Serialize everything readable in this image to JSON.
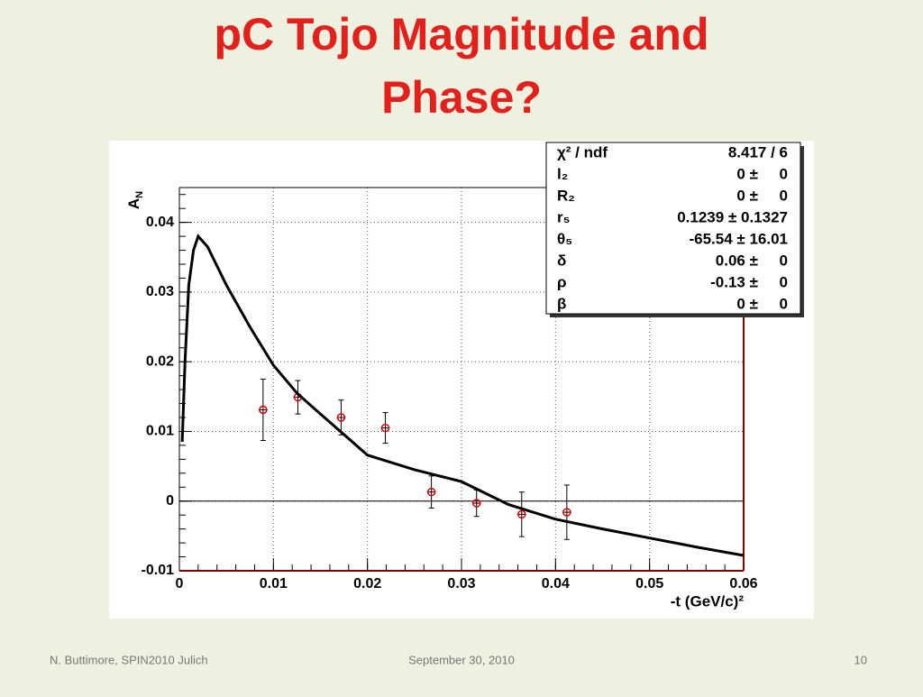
{
  "slide_title": [
    "pC Tojo Magnitude and",
    "Phase?"
  ],
  "chart_data": {
    "type": "scatter",
    "ylabel": "A",
    "ylabel_sub": "N",
    "xlabel": "-t (GeV/c)²",
    "xlim": [
      0,
      0.06
    ],
    "ylim": [
      -0.01,
      0.045
    ],
    "xticks": [
      0,
      0.01,
      0.02,
      0.03,
      0.04,
      0.05,
      0.06
    ],
    "yticks": [
      -0.01,
      0,
      0.01,
      0.02,
      0.03,
      0.04
    ],
    "grid": true,
    "series": [
      {
        "type": "scatter",
        "color": "#e00000",
        "x": [
          0.0089,
          0.0126,
          0.0172,
          0.0219,
          0.0268,
          0.0316,
          0.0364,
          0.0412
        ],
        "values": [
          0.0131,
          0.0149,
          0.012,
          0.0105,
          0.0013,
          -0.0003,
          -0.0019,
          -0.0016
        ],
        "errors": [
          0.0044,
          0.0024,
          0.0025,
          0.0022,
          0.0023,
          0.0019,
          0.0032,
          0.0039
        ]
      },
      {
        "type": "line",
        "color": "#000000",
        "x": [
          0.0003,
          0.0006,
          0.001,
          0.0015,
          0.002,
          0.003,
          0.005,
          0.0075,
          0.01,
          0.0125,
          0.015,
          0.02,
          0.025,
          0.03,
          0.035,
          0.04,
          0.045,
          0.05,
          0.055,
          0.06
        ],
        "values": [
          0.0085,
          0.02,
          0.031,
          0.036,
          0.038,
          0.0365,
          0.031,
          0.025,
          0.0195,
          0.0155,
          0.0125,
          0.0066,
          0.0045,
          0.0028,
          -0.0005,
          -0.0026,
          -0.004,
          -0.0053,
          -0.0066,
          -0.0078
        ]
      }
    ],
    "stats": [
      [
        "χ² / ndf",
        "8.417 / 6"
      ],
      [
        "l₂",
        "0 ±     0"
      ],
      [
        "R₂",
        "0 ±     0"
      ],
      [
        "r₅",
        "0.1239 ± 0.1327"
      ],
      [
        "θ₅",
        "-65.54 ± 16.01"
      ],
      [
        "δ",
        "0.06 ±     0"
      ],
      [
        "ρ",
        "-0.13 ±     0"
      ],
      [
        "β",
        "0 ±     0"
      ]
    ]
  },
  "footer": {
    "left": "N. Buttimore, SPIN2010 Julich",
    "center": "September 30, 2010",
    "right": "10"
  }
}
